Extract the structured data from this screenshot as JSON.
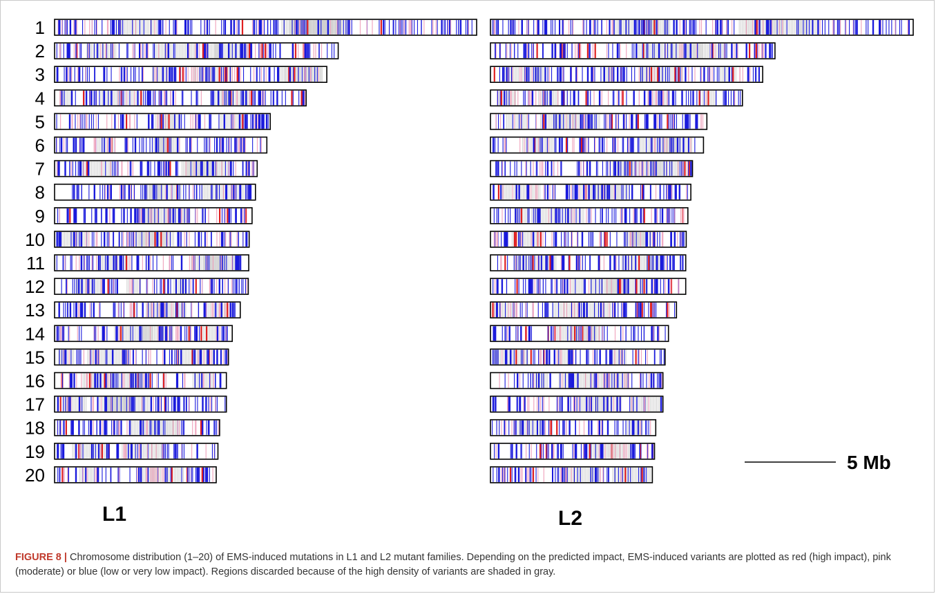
{
  "figure": {
    "chromosomes": [
      "1",
      "2",
      "3",
      "4",
      "5",
      "6",
      "7",
      "8",
      "9",
      "10",
      "11",
      "12",
      "13",
      "14",
      "15",
      "16",
      "17",
      "18",
      "19",
      "20"
    ],
    "lines": [
      {
        "label": "L1",
        "chromosome_lengths_rel": [
          1.0,
          0.672,
          0.645,
          0.596,
          0.511,
          0.503,
          0.48,
          0.476,
          0.468,
          0.461,
          0.46,
          0.459,
          0.44,
          0.421,
          0.412,
          0.407,
          0.407,
          0.391,
          0.387,
          0.383
        ]
      },
      {
        "label": "L2",
        "chromosome_lengths_rel": [
          1.0,
          0.673,
          0.644,
          0.596,
          0.512,
          0.504,
          0.478,
          0.474,
          0.467,
          0.463,
          0.462,
          0.462,
          0.44,
          0.421,
          0.413,
          0.408,
          0.408,
          0.391,
          0.388,
          0.383
        ]
      }
    ],
    "scale_bar": {
      "label": "5 Mb"
    },
    "colors": {
      "high": "#e02020",
      "moderate": "#f0a8c0",
      "low": "#1a1adc",
      "discarded": "#cfcfcf",
      "outline": "#000000"
    },
    "caption": {
      "figure_label": "FIGURE 8 |",
      "text": " Chromosome distribution (1–20) of EMS-induced mutations in L1 and L2 mutant families. Depending on the predicted impact, EMS-induced variants are plotted as red (high impact), pink (moderate) or blue (low or very low impact). Regions discarded because of the high density of variants are shaded in gray."
    }
  }
}
